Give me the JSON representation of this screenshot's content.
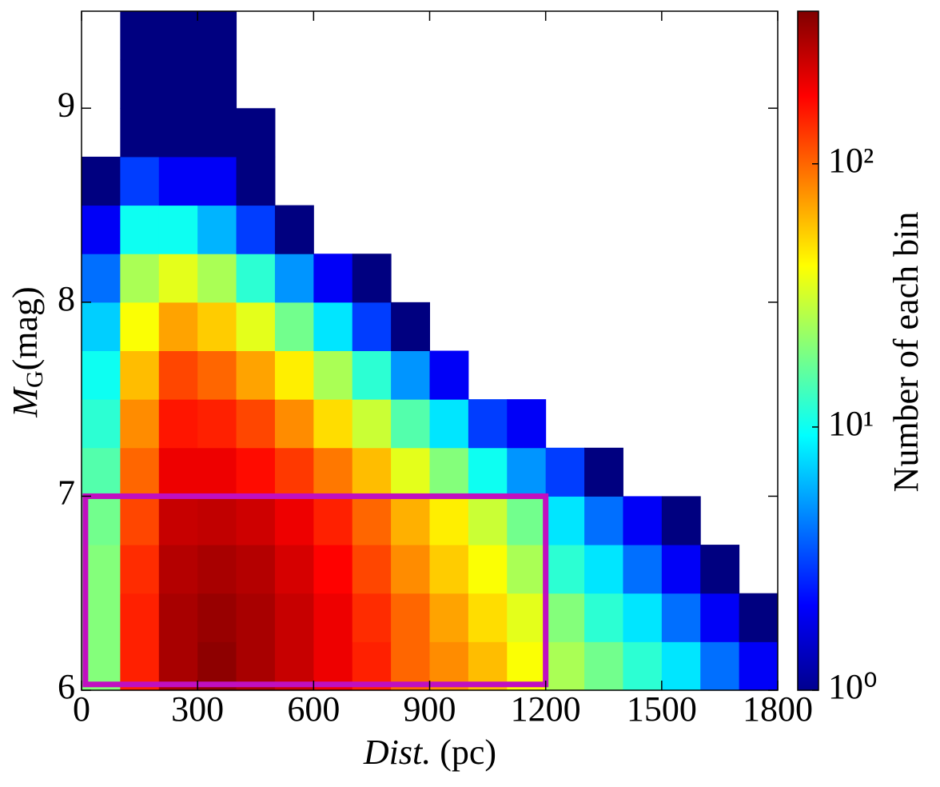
{
  "chart_data": {
    "type": "heatmap",
    "xlabel": {
      "italic": "Dist.",
      "unit": "(pc)"
    },
    "ylabel": {
      "symbol": "M",
      "subscript": "G",
      "unit": "(mag)"
    },
    "colorbar_label": "Number of each bin",
    "colormap": "jet",
    "log_color": true,
    "clim": [
      1,
      380
    ],
    "cticks": [
      {
        "value": 1,
        "label": "10⁰"
      },
      {
        "value": 10,
        "label": "10¹"
      },
      {
        "value": 100,
        "label": "10²"
      }
    ],
    "xlim": [
      0,
      1800
    ],
    "ylim": [
      6,
      9.5
    ],
    "xticks": [
      0,
      300,
      600,
      900,
      1200,
      1500,
      1800
    ],
    "yticks": [
      6,
      7,
      8,
      9
    ],
    "x_bins": [
      0,
      100,
      200,
      300,
      400,
      500,
      600,
      700,
      800,
      900,
      1000,
      1100,
      1200,
      1300,
      1400,
      1500,
      1600,
      1700,
      1800
    ],
    "y_bins": [
      6,
      6.25,
      6.5,
      6.75,
      7,
      7.25,
      7.5,
      7.75,
      8,
      8.25,
      8.5,
      8.75,
      9,
      9.25,
      9.5
    ],
    "counts": [
      [
        20,
        150,
        300,
        350,
        300,
        250,
        200,
        150,
        100,
        80,
        60,
        40,
        25,
        18,
        12,
        8,
        4,
        2
      ],
      [
        20,
        150,
        300,
        330,
        300,
        250,
        200,
        140,
        100,
        70,
        50,
        35,
        20,
        12,
        8,
        4,
        2,
        1
      ],
      [
        20,
        140,
        280,
        300,
        280,
        230,
        180,
        120,
        80,
        55,
        40,
        25,
        12,
        8,
        4,
        2,
        1,
        null
      ],
      [
        18,
        120,
        250,
        260,
        240,
        200,
        150,
        100,
        65,
        45,
        30,
        18,
        8,
        4,
        2,
        1,
        null,
        null
      ],
      [
        15,
        100,
        200,
        200,
        170,
        130,
        90,
        60,
        35,
        20,
        10,
        5,
        3,
        1,
        null,
        null,
        null,
        null
      ],
      [
        12,
        80,
        160,
        150,
        120,
        80,
        50,
        30,
        15,
        8,
        3,
        2,
        null,
        null,
        null,
        null,
        null,
        null
      ],
      [
        10,
        60,
        120,
        100,
        70,
        45,
        25,
        12,
        5,
        2,
        null,
        null,
        null,
        null,
        null,
        null,
        null,
        null
      ],
      [
        7,
        40,
        70,
        55,
        35,
        18,
        8,
        3,
        1,
        null,
        null,
        null,
        null,
        null,
        null,
        null,
        null,
        null
      ],
      [
        4,
        25,
        35,
        25,
        12,
        5,
        2,
        1,
        null,
        null,
        null,
        null,
        null,
        null,
        null,
        null,
        null,
        null
      ],
      [
        2,
        10,
        10,
        6,
        3,
        1,
        null,
        null,
        null,
        null,
        null,
        null,
        null,
        null,
        null,
        null,
        null,
        null
      ],
      [
        1,
        3,
        2,
        2,
        1,
        null,
        null,
        null,
        null,
        null,
        null,
        null,
        null,
        null,
        null,
        null,
        null,
        null
      ],
      [
        null,
        1,
        1,
        1,
        1,
        null,
        null,
        null,
        null,
        null,
        null,
        null,
        null,
        null,
        null,
        null,
        null,
        null
      ],
      [
        null,
        1,
        1,
        1,
        null,
        null,
        null,
        null,
        null,
        null,
        null,
        null,
        null,
        null,
        null,
        null,
        null,
        null
      ],
      [
        null,
        1,
        1,
        1,
        null,
        null,
        null,
        null,
        null,
        null,
        null,
        null,
        null,
        null,
        null,
        null,
        null,
        null
      ]
    ],
    "highlight": {
      "x": [
        10,
        1200
      ],
      "y": [
        6.03,
        7
      ],
      "color": "#c010c0"
    }
  }
}
